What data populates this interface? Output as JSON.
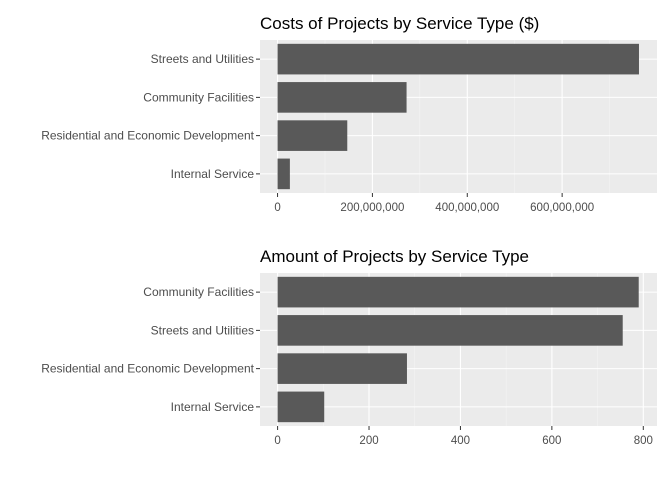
{
  "chart_data": [
    {
      "type": "bar",
      "orientation": "horizontal",
      "title": "Costs of Projects by Service Type ($)",
      "xlabel": "",
      "ylabel": "",
      "categories": [
        "Internal Service",
        "Residential and Economic Development",
        "Community Facilities",
        "Streets and Utilities"
      ],
      "values": [
        26000000,
        147000000,
        272000000,
        762000000
      ],
      "xlim": [
        -37000000,
        800000000
      ],
      "major_ticks": [
        0,
        200000000,
        400000000,
        600000000
      ],
      "tick_labels": [
        "0",
        "200,000,000",
        "400,000,000",
        "600,000,000"
      ],
      "minor_ticks": [
        100000000,
        300000000,
        500000000,
        700000000
      ],
      "bar_color": "#595959",
      "panel_color": "#ebebeb",
      "grid": true
    },
    {
      "type": "bar",
      "orientation": "horizontal",
      "title": "Amount of Projects by Service Type",
      "xlabel": "",
      "ylabel": "",
      "categories": [
        "Internal Service",
        "Residential and Economic Development",
        "Streets and Utilities",
        "Community Facilities"
      ],
      "values": [
        102,
        283,
        755,
        790
      ],
      "xlim": [
        -38.5,
        830
      ],
      "major_ticks": [
        0,
        200,
        400,
        600,
        800
      ],
      "tick_labels": [
        "0",
        "200",
        "400",
        "600",
        "800"
      ],
      "minor_ticks": [
        100,
        300,
        500,
        700
      ],
      "bar_color": "#595959",
      "panel_color": "#ebebeb",
      "grid": true
    }
  ]
}
